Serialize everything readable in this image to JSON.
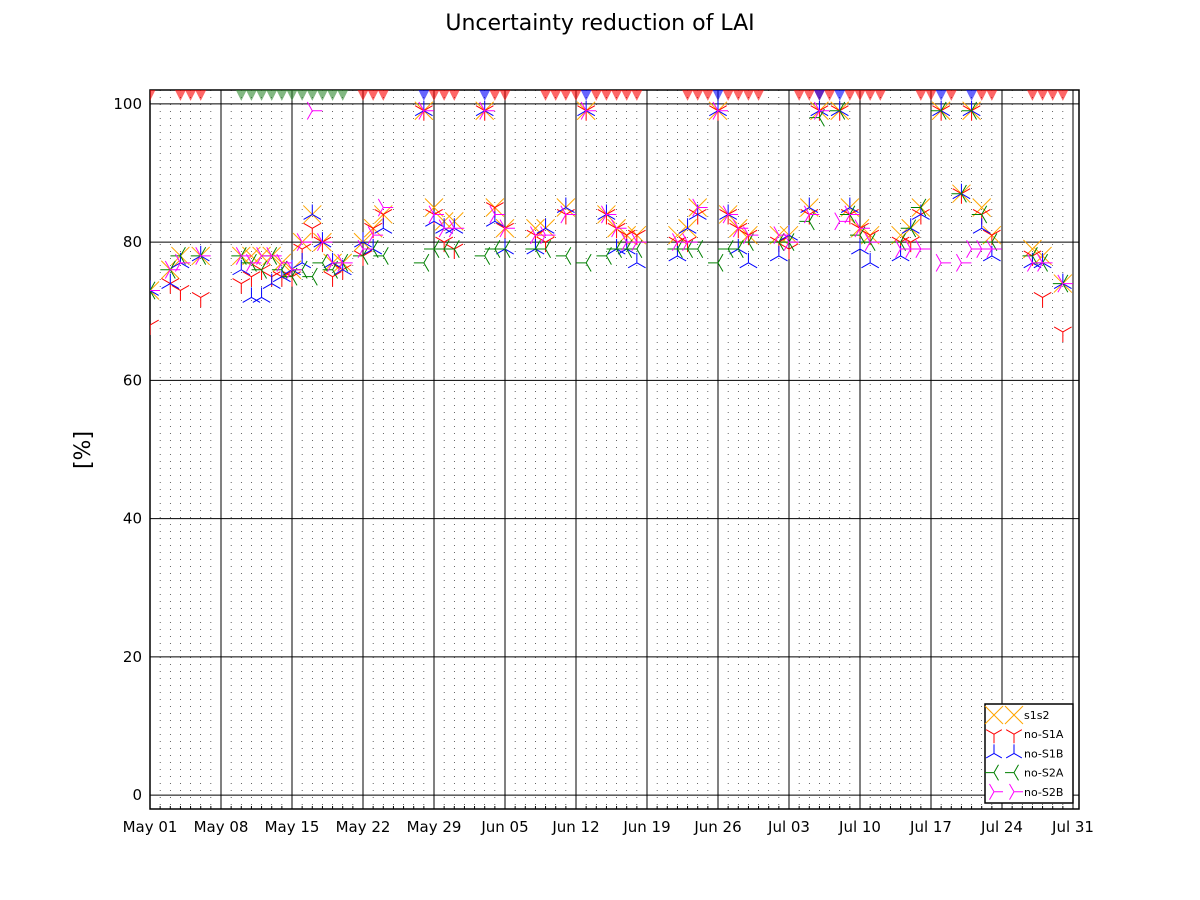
{
  "chart_data": {
    "type": "scatter",
    "title": "Uncertainty reduction of LAI",
    "y_label": "[%]",
    "x": [
      "May 01",
      "May 03",
      "May 04",
      "May 06",
      "May 10",
      "May 11",
      "May 12",
      "May 13",
      "May 14",
      "May 15",
      "May 16",
      "May 17",
      "May 18",
      "May 19",
      "May 20",
      "May 22",
      "May 23",
      "May 24",
      "May 28",
      "May 29",
      "May 30",
      "May 31",
      "Jun 03",
      "Jun 04",
      "Jun 05",
      "Jun 08",
      "Jun 09",
      "Jun 11",
      "Jun 13",
      "Jun 15",
      "Jun 16",
      "Jun 17",
      "Jun 18",
      "Jun 22",
      "Jun 23",
      "Jun 24",
      "Jun 26",
      "Jun 27",
      "Jun 28",
      "Jun 29",
      "Jul 02",
      "Jul 03",
      "Jul 05",
      "Jul 06",
      "Jul 08",
      "Jul 09",
      "Jul 10",
      "Jul 11",
      "Jul 14",
      "Jul 15",
      "Jul 16",
      "Jul 18",
      "Jul 20",
      "Jul 21",
      "Jul 22",
      "Jul 23",
      "Jul 27",
      "Jul 28",
      "Jul 30"
    ],
    "series": [
      {
        "name": "s1s2",
        "color": "#ffa500",
        "marker": "x",
        "values": [
          73,
          76,
          78,
          78,
          78,
          78,
          78,
          78,
          77,
          76,
          80,
          84,
          80,
          77,
          77,
          80,
          82,
          84,
          99,
          85,
          83,
          83,
          99,
          85,
          82,
          82,
          82,
          85,
          99,
          84,
          82,
          81,
          81,
          81,
          82,
          85,
          99,
          84,
          82,
          81,
          81,
          81,
          85,
          99,
          99,
          85,
          82,
          81,
          81,
          82,
          85,
          99,
          87,
          99,
          85,
          81,
          79,
          78,
          74
        ]
      },
      {
        "name": "no-S1A",
        "color": "#ff0000",
        "marker": "tri_down",
        "values": [
          68,
          74,
          73,
          72,
          74,
          75,
          76,
          75,
          75,
          75,
          79,
          82,
          80,
          75,
          76,
          78,
          82,
          84,
          99,
          84,
          80,
          79,
          99,
          85,
          82,
          81,
          80,
          84,
          99,
          84,
          82,
          81,
          81,
          80,
          80,
          84,
          99,
          84,
          82,
          81,
          80,
          79,
          84,
          99,
          99,
          84,
          82,
          81,
          80,
          80,
          84,
          99,
          87,
          99,
          84,
          81,
          78,
          72,
          67
        ]
      },
      {
        "name": "no-S1B",
        "color": "#0000ff",
        "marker": "tri_up",
        "values": [
          73,
          74,
          77,
          78,
          76,
          72,
          72,
          74,
          75,
          76,
          77,
          84,
          80,
          77,
          76,
          80,
          79,
          82,
          99,
          83,
          82,
          82,
          99,
          83,
          79,
          79,
          82,
          85,
          99,
          84,
          79,
          79,
          77,
          78,
          82,
          84,
          99,
          84,
          79,
          77,
          78,
          81,
          85,
          99,
          99,
          85,
          79,
          77,
          78,
          82,
          84,
          99,
          87,
          99,
          82,
          78,
          77,
          77,
          74
        ]
      },
      {
        "name": "no-S2A",
        "color": "#008000",
        "marker": "tri_left",
        "values": [
          73,
          76,
          78,
          78,
          78,
          77,
          76,
          78,
          76,
          75,
          76,
          75,
          77,
          76,
          77,
          78,
          79,
          78,
          77,
          79,
          79,
          79,
          78,
          79,
          79,
          79,
          79,
          78,
          77,
          78,
          79,
          79,
          79,
          79,
          79,
          79,
          77,
          79,
          79,
          80,
          80,
          80,
          83,
          98,
          99,
          84,
          81,
          80,
          80,
          82,
          85,
          99,
          87,
          99,
          84,
          80,
          78,
          77,
          74
        ]
      },
      {
        "name": "no-S2B",
        "color": "#ff00ff",
        "marker": "tri_right",
        "values": [
          73,
          76,
          77,
          78,
          78,
          77,
          78,
          78,
          77,
          76,
          80,
          99,
          80,
          77,
          77,
          79,
          81,
          85,
          99,
          84,
          82,
          82,
          99,
          84,
          82,
          81,
          81,
          84,
          99,
          84,
          82,
          80,
          80,
          80,
          80,
          85,
          99,
          84,
          82,
          81,
          81,
          80,
          84,
          99,
          83,
          84,
          82,
          80,
          79,
          79,
          79,
          77,
          77,
          79,
          79,
          79,
          77,
          77,
          74
        ]
      }
    ],
    "top_markers": [
      {
        "color": "#ff0000",
        "y": 101,
        "x": [
          "May 01",
          "May 04",
          "May 05",
          "May 06",
          "May 22",
          "May 23",
          "May 24",
          "May 29",
          "May 30",
          "May 31",
          "Jun 04",
          "Jun 05",
          "Jun 09",
          "Jun 10",
          "Jun 11",
          "Jun 12",
          "Jun 14",
          "Jun 15",
          "Jun 16",
          "Jun 17",
          "Jun 18",
          "Jun 23",
          "Jun 24",
          "Jun 25",
          "Jun 27",
          "Jun 28",
          "Jun 29",
          "Jun 30",
          "Jul 04",
          "Jul 05",
          "Jul 06",
          "Jul 07",
          "Jul 09",
          "Jul 10",
          "Jul 11",
          "Jul 12",
          "Jul 16",
          "Jul 17",
          "Jul 19",
          "Jul 22",
          "Jul 23",
          "Jul 27",
          "Jul 28",
          "Jul 29",
          "Jul 30"
        ]
      },
      {
        "color": "#2e8b2e",
        "y": 101,
        "x": [
          "May 10",
          "May 11",
          "May 12",
          "May 13",
          "May 14",
          "May 15",
          "May 16",
          "May 17",
          "May 18",
          "May 19",
          "May 20"
        ]
      },
      {
        "color": "#0000ff",
        "y": 101,
        "x": [
          "May 28",
          "Jun 03",
          "Jun 13",
          "Jun 26",
          "Jul 06",
          "Jul 08",
          "Jul 18",
          "Jul 21"
        ]
      }
    ],
    "xlim": [
      "May 01",
      "Jul 31"
    ],
    "xticks": [
      "May 01",
      "May 08",
      "May 15",
      "May 22",
      "May 29",
      "Jun 05",
      "Jun 12",
      "Jun 19",
      "Jun 26",
      "Jul 03",
      "Jul 10",
      "Jul 17",
      "Jul 24",
      "Jul 31"
    ],
    "ylim": [
      -2,
      102
    ],
    "yticks": [
      0,
      20,
      40,
      60,
      80,
      100
    ],
    "grid": true,
    "legend": "lower right"
  }
}
